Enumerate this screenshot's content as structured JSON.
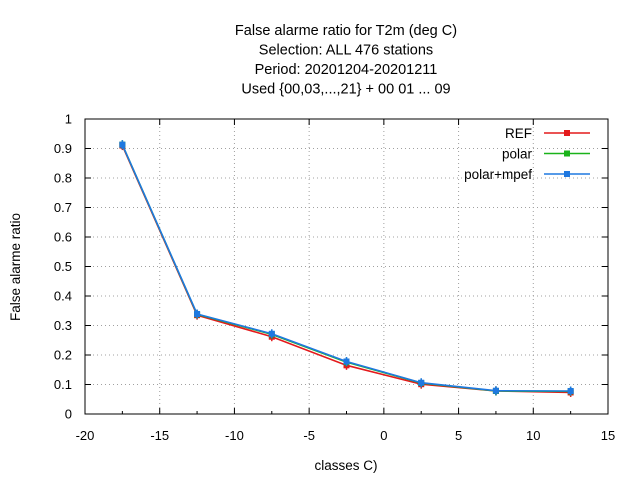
{
  "chart_data": {
    "type": "line",
    "title_lines": [
      "False alarme ratio  for T2m (deg C)",
      "Selection: ALL    476 stations",
      "Period: 20201204-20201211",
      "Used {00,03,...,21} + 00 01 ... 09"
    ],
    "xlabel": "classes C)",
    "ylabel": "False alarme ratio",
    "xlim": [
      -20,
      15
    ],
    "ylim": [
      0,
      1
    ],
    "xticks": [
      -20,
      -15,
      -10,
      -5,
      0,
      5,
      10,
      15
    ],
    "yticks": [
      0,
      0.1,
      0.2,
      0.3,
      0.4,
      0.5,
      0.6,
      0.7,
      0.8,
      0.9,
      1
    ],
    "grid": true,
    "legend_position": "top-right",
    "x": [
      -17.5,
      -12.5,
      -7.5,
      -2.5,
      2.5,
      7.5,
      12.5
    ],
    "series": [
      {
        "name": "REF",
        "color": "#e41a1c",
        "values": [
          0.91,
          0.335,
          0.262,
          0.165,
          0.101,
          0.078,
          0.073
        ]
      },
      {
        "name": "polar",
        "color": "#1ab31a",
        "values": [
          0.913,
          0.338,
          0.27,
          0.176,
          0.105,
          0.078,
          0.077
        ]
      },
      {
        "name": "polar+mpef",
        "color": "#1f78e0",
        "values": [
          0.913,
          0.339,
          0.272,
          0.178,
          0.106,
          0.079,
          0.078
        ]
      }
    ]
  }
}
